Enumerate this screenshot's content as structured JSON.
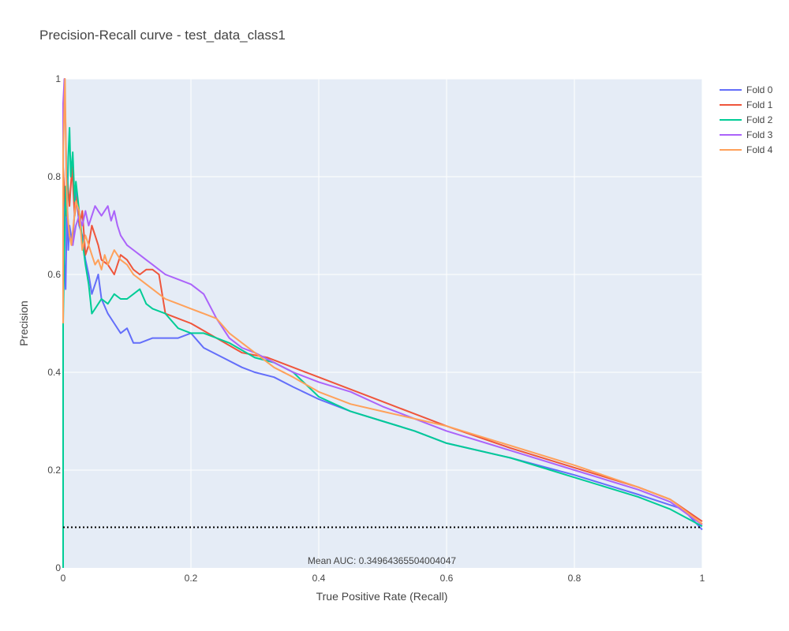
{
  "chart_data": {
    "type": "line",
    "title": "Precision-Recall curve - test_data_class1",
    "xlabel": "True Positive Rate (Recall)",
    "ylabel": "Precision",
    "xlim": [
      0,
      1
    ],
    "ylim": [
      0,
      1
    ],
    "x_ticks": [
      {
        "v": 0,
        "label": "0"
      },
      {
        "v": 0.2,
        "label": "0.2"
      },
      {
        "v": 0.4,
        "label": "0.4"
      },
      {
        "v": 0.6,
        "label": "0.6"
      },
      {
        "v": 0.8,
        "label": "0.8"
      },
      {
        "v": 1,
        "label": "1"
      }
    ],
    "y_ticks": [
      {
        "v": 0,
        "label": "0"
      },
      {
        "v": 0.2,
        "label": "0.2"
      },
      {
        "v": 0.4,
        "label": "0.4"
      },
      {
        "v": 0.6,
        "label": "0.6"
      },
      {
        "v": 0.8,
        "label": "0.8"
      },
      {
        "v": 1,
        "label": "1"
      }
    ],
    "grid": true,
    "plot_background": "#E5ECF6",
    "legend_position": "top-right",
    "annotation": "Mean AUC: 0.34964365504004047",
    "baseline": {
      "y": 0.083,
      "style": "dotted",
      "color": "#000000"
    },
    "series": [
      {
        "name": "Fold 0",
        "color": "#636EFA",
        "x": [
          0,
          0,
          0.002,
          0.004,
          0.006,
          0.008,
          0.01,
          0.015,
          0.02,
          0.025,
          0.03,
          0.035,
          0.04,
          0.045,
          0.05,
          0.055,
          0.06,
          0.07,
          0.08,
          0.09,
          0.1,
          0.11,
          0.12,
          0.14,
          0.16,
          0.18,
          0.2,
          0.22,
          0.25,
          0.28,
          0.3,
          0.33,
          0.36,
          0.4,
          0.45,
          0.5,
          0.55,
          0.6,
          0.7,
          0.8,
          0.9,
          0.97,
          1.0
        ],
        "y": [
          0.5,
          0.82,
          0.62,
          0.57,
          0.75,
          0.65,
          0.7,
          0.66,
          0.78,
          0.7,
          0.68,
          0.63,
          0.6,
          0.56,
          0.58,
          0.6,
          0.55,
          0.52,
          0.5,
          0.48,
          0.49,
          0.46,
          0.46,
          0.47,
          0.47,
          0.47,
          0.48,
          0.45,
          0.43,
          0.41,
          0.4,
          0.39,
          0.37,
          0.345,
          0.32,
          0.3,
          0.28,
          0.255,
          0.225,
          0.19,
          0.15,
          0.12,
          0.078
        ]
      },
      {
        "name": "Fold 1",
        "color": "#EF553B",
        "x": [
          0,
          0,
          0.004,
          0.007,
          0.01,
          0.014,
          0.018,
          0.022,
          0.026,
          0.03,
          0.035,
          0.04,
          0.045,
          0.05,
          0.055,
          0.06,
          0.07,
          0.08,
          0.09,
          0.1,
          0.11,
          0.12,
          0.13,
          0.14,
          0.15,
          0.16,
          0.18,
          0.2,
          0.24,
          0.28,
          0.32,
          0.36,
          0.4,
          0.45,
          0.5,
          0.55,
          0.6,
          0.7,
          0.8,
          0.9,
          0.95,
          1.0
        ],
        "y": [
          0.5,
          0.82,
          0.72,
          0.79,
          0.74,
          0.82,
          0.72,
          0.76,
          0.7,
          0.73,
          0.64,
          0.66,
          0.7,
          0.68,
          0.66,
          0.63,
          0.62,
          0.6,
          0.64,
          0.63,
          0.61,
          0.6,
          0.61,
          0.61,
          0.6,
          0.52,
          0.51,
          0.5,
          0.47,
          0.44,
          0.43,
          0.41,
          0.39,
          0.365,
          0.34,
          0.315,
          0.29,
          0.245,
          0.205,
          0.165,
          0.14,
          0.095
        ]
      },
      {
        "name": "Fold 2",
        "color": "#00CC96",
        "x": [
          0,
          0,
          0.002,
          0.004,
          0.006,
          0.008,
          0.01,
          0.012,
          0.015,
          0.018,
          0.02,
          0.025,
          0.03,
          0.035,
          0.04,
          0.045,
          0.05,
          0.06,
          0.07,
          0.08,
          0.09,
          0.1,
          0.11,
          0.12,
          0.13,
          0.14,
          0.16,
          0.18,
          0.2,
          0.22,
          0.24,
          0.26,
          0.3,
          0.33,
          0.36,
          0.4,
          0.45,
          0.5,
          0.55,
          0.6,
          0.7,
          0.8,
          0.9,
          0.95,
          1.0
        ],
        "y": [
          0,
          0.5,
          0.65,
          0.78,
          0.72,
          0.84,
          0.9,
          0.8,
          0.85,
          0.75,
          0.79,
          0.73,
          0.67,
          0.62,
          0.58,
          0.52,
          0.53,
          0.55,
          0.54,
          0.56,
          0.55,
          0.55,
          0.56,
          0.57,
          0.54,
          0.53,
          0.52,
          0.49,
          0.48,
          0.48,
          0.47,
          0.46,
          0.43,
          0.42,
          0.4,
          0.35,
          0.32,
          0.3,
          0.28,
          0.255,
          0.225,
          0.185,
          0.145,
          0.12,
          0.085
        ]
      },
      {
        "name": "Fold 3",
        "color": "#AB63FA",
        "x": [
          0,
          0,
          0.002,
          0.004,
          0.006,
          0.008,
          0.01,
          0.015,
          0.02,
          0.025,
          0.03,
          0.035,
          0.04,
          0.045,
          0.05,
          0.055,
          0.06,
          0.07,
          0.075,
          0.08,
          0.085,
          0.09,
          0.1,
          0.11,
          0.12,
          0.13,
          0.14,
          0.15,
          0.16,
          0.18,
          0.2,
          0.21,
          0.22,
          0.24,
          0.26,
          0.28,
          0.3,
          0.33,
          0.36,
          0.4,
          0.45,
          0.5,
          0.55,
          0.6,
          0.7,
          0.8,
          0.9,
          0.95,
          1.0
        ],
        "y": [
          0.5,
          0.95,
          1.0,
          0.9,
          0.75,
          0.7,
          0.68,
          0.66,
          0.7,
          0.72,
          0.7,
          0.73,
          0.7,
          0.72,
          0.74,
          0.73,
          0.72,
          0.74,
          0.71,
          0.73,
          0.7,
          0.68,
          0.66,
          0.65,
          0.64,
          0.63,
          0.62,
          0.61,
          0.6,
          0.59,
          0.58,
          0.57,
          0.56,
          0.51,
          0.47,
          0.45,
          0.44,
          0.42,
          0.4,
          0.38,
          0.36,
          0.33,
          0.305,
          0.28,
          0.24,
          0.2,
          0.16,
          0.135,
          0.088
        ]
      },
      {
        "name": "Fold 4",
        "color": "#FFA15A",
        "x": [
          0,
          0,
          0.003,
          0.005,
          0.007,
          0.01,
          0.013,
          0.016,
          0.02,
          0.025,
          0.03,
          0.035,
          0.04,
          0.045,
          0.05,
          0.055,
          0.06,
          0.065,
          0.07,
          0.08,
          0.09,
          0.1,
          0.11,
          0.12,
          0.14,
          0.16,
          0.18,
          0.2,
          0.22,
          0.24,
          0.26,
          0.28,
          0.3,
          0.33,
          0.36,
          0.4,
          0.45,
          0.5,
          0.55,
          0.6,
          0.7,
          0.8,
          0.9,
          0.95,
          1.0
        ],
        "y": [
          0.5,
          0.85,
          1.0,
          0.8,
          0.72,
          0.68,
          0.66,
          0.7,
          0.75,
          0.73,
          0.65,
          0.68,
          0.66,
          0.64,
          0.62,
          0.63,
          0.61,
          0.64,
          0.62,
          0.65,
          0.63,
          0.62,
          0.6,
          0.59,
          0.57,
          0.55,
          0.54,
          0.53,
          0.52,
          0.51,
          0.48,
          0.46,
          0.44,
          0.41,
          0.39,
          0.36,
          0.335,
          0.32,
          0.305,
          0.29,
          0.25,
          0.21,
          0.165,
          0.14,
          0.09
        ]
      }
    ]
  }
}
